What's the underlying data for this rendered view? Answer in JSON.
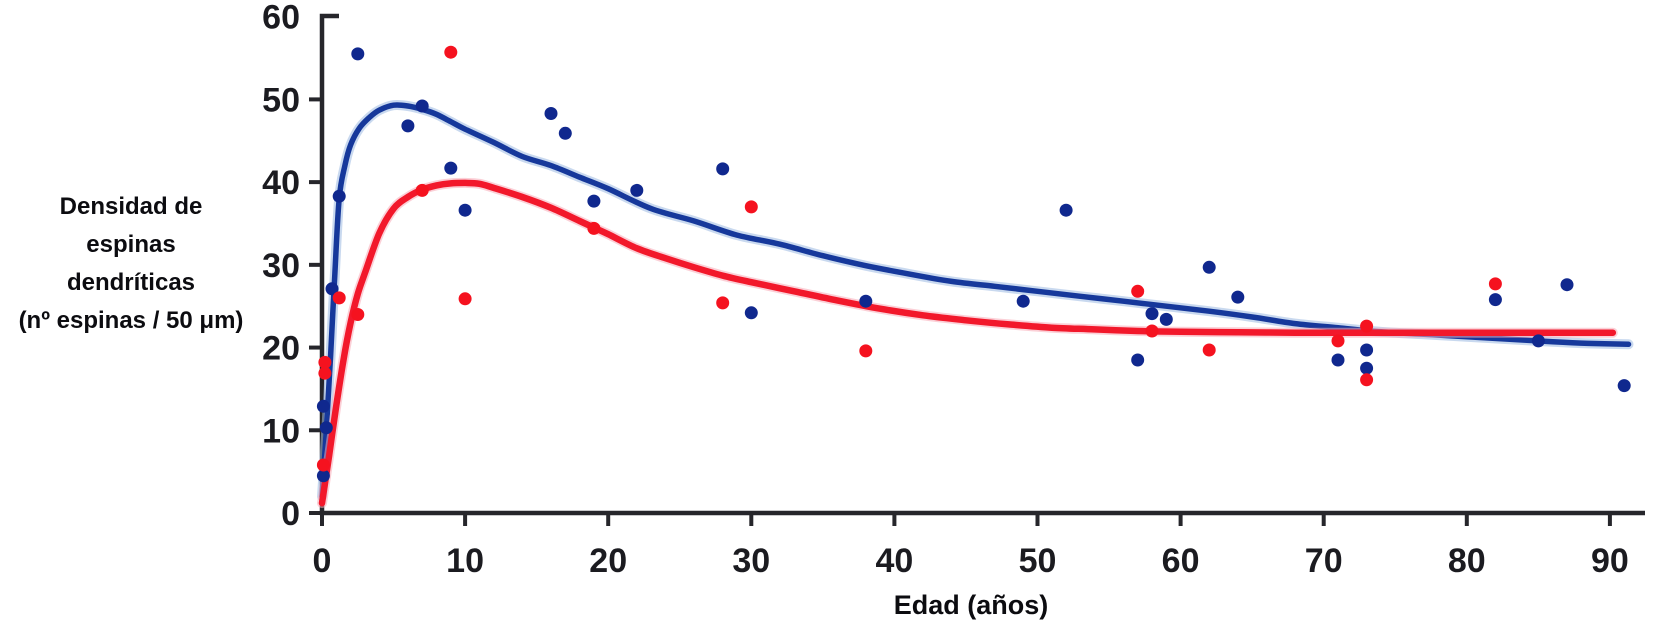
{
  "chart_data": {
    "type": "scatter",
    "title": "",
    "xlabel": "Edad (años)",
    "ylabel": "Densidad de espinas dendríticas (nº espinas / 50 μm)",
    "ylabel_lines": [
      "Densidad de",
      "espinas",
      "dendríticas",
      "(nº espinas / 50 μm)"
    ],
    "x_ticks": [
      0,
      10,
      20,
      30,
      40,
      50,
      60,
      70,
      80,
      90
    ],
    "y_ticks": [
      0,
      10,
      20,
      30,
      40,
      50,
      60
    ],
    "xlim": [
      0,
      92
    ],
    "ylim": [
      0,
      60
    ],
    "grid": false,
    "legend": "none",
    "colors": {
      "axis": "#26262b",
      "azul": "#10288e",
      "rojo": "#f5121f"
    },
    "series": [
      {
        "name": "azul",
        "marker_color": "#10288e",
        "curve_color": "#16389b",
        "halo_color": "#9db9e2",
        "points": [
          [
            0.1,
            4.5
          ],
          [
            0.1,
            12.9
          ],
          [
            0.3,
            10.3
          ],
          [
            0.7,
            27.1
          ],
          [
            1.2,
            38.3
          ],
          [
            2.5,
            55.5
          ],
          [
            6,
            46.8
          ],
          [
            7,
            49.2
          ],
          [
            9,
            41.7
          ],
          [
            10,
            36.6
          ],
          [
            16,
            48.3
          ],
          [
            17,
            45.9
          ],
          [
            19,
            37.7
          ],
          [
            22,
            39.0
          ],
          [
            28,
            41.6
          ],
          [
            30,
            24.2
          ],
          [
            38,
            25.6
          ],
          [
            49,
            25.6
          ],
          [
            52,
            36.6
          ],
          [
            57,
            18.5
          ],
          [
            58,
            24.1
          ],
          [
            59,
            23.4
          ],
          [
            62,
            29.7
          ],
          [
            64,
            26.1
          ],
          [
            71,
            18.5
          ],
          [
            73,
            19.7
          ],
          [
            73,
            17.5
          ],
          [
            82,
            25.8
          ],
          [
            85,
            20.8
          ],
          [
            87,
            27.6
          ],
          [
            91,
            15.4
          ]
        ],
        "fit_curve": [
          [
            0,
            2
          ],
          [
            0.3,
            10
          ],
          [
            0.6,
            19
          ],
          [
            0.9,
            29
          ],
          [
            1.2,
            38
          ],
          [
            1.6,
            42
          ],
          [
            2,
            44.5
          ],
          [
            2.6,
            46.5
          ],
          [
            3.3,
            47.8
          ],
          [
            4,
            48.7
          ],
          [
            5,
            49.3
          ],
          [
            6,
            49.2
          ],
          [
            7,
            48.8
          ],
          [
            8,
            48.2
          ],
          [
            9,
            47.3
          ],
          [
            10,
            46.4
          ],
          [
            12,
            44.8
          ],
          [
            14,
            43.1
          ],
          [
            16,
            42.0
          ],
          [
            18,
            40.6
          ],
          [
            20,
            39.2
          ],
          [
            23,
            36.8
          ],
          [
            26,
            35.3
          ],
          [
            29,
            33.6
          ],
          [
            32,
            32.5
          ],
          [
            35,
            31.1
          ],
          [
            38,
            29.9
          ],
          [
            41,
            28.9
          ],
          [
            44,
            28.0
          ],
          [
            47,
            27.4
          ],
          [
            50,
            26.8
          ],
          [
            53,
            26.2
          ],
          [
            56,
            25.6
          ],
          [
            59,
            25.0
          ],
          [
            62,
            24.4
          ],
          [
            65,
            23.7
          ],
          [
            68,
            22.9
          ],
          [
            71,
            22.4
          ],
          [
            74,
            21.9
          ],
          [
            77,
            21.6
          ],
          [
            80,
            21.3
          ],
          [
            83,
            21.0
          ],
          [
            86,
            20.7
          ],
          [
            88.5,
            20.5
          ],
          [
            91.3,
            20.4
          ]
        ]
      },
      {
        "name": "rojo",
        "marker_color": "#f5121f",
        "curve_color": "#f2182b",
        "halo_color": "#f8aab6",
        "points": [
          [
            0.1,
            5.8
          ],
          [
            0.2,
            16.9
          ],
          [
            0.2,
            18.2
          ],
          [
            1.2,
            26.0
          ],
          [
            2.5,
            24.0
          ],
          [
            7,
            39.0
          ],
          [
            9,
            55.7
          ],
          [
            10,
            25.9
          ],
          [
            19,
            34.4
          ],
          [
            28,
            25.4
          ],
          [
            30,
            37.0
          ],
          [
            38,
            19.6
          ],
          [
            57,
            26.8
          ],
          [
            58,
            22.0
          ],
          [
            62,
            19.7
          ],
          [
            71,
            20.8
          ],
          [
            73,
            22.6
          ],
          [
            73,
            16.1
          ],
          [
            82,
            27.7
          ]
        ],
        "fit_curve": [
          [
            0,
            1.2
          ],
          [
            0.5,
            7
          ],
          [
            1,
            13
          ],
          [
            1.5,
            18.5
          ],
          [
            2,
            23
          ],
          [
            2.5,
            26.5
          ],
          [
            3,
            29
          ],
          [
            4,
            33.8
          ],
          [
            5,
            36.8
          ],
          [
            6,
            38.2
          ],
          [
            7,
            39.1
          ],
          [
            8,
            39.6
          ],
          [
            9,
            39.85
          ],
          [
            10,
            39.9
          ],
          [
            11,
            39.8
          ],
          [
            12,
            39.3
          ],
          [
            14,
            38.2
          ],
          [
            16,
            36.9
          ],
          [
            18,
            35.3
          ],
          [
            19,
            34.5
          ],
          [
            20,
            33.7
          ],
          [
            22,
            32.0
          ],
          [
            24,
            30.8
          ],
          [
            26,
            29.7
          ],
          [
            28,
            28.7
          ],
          [
            30,
            27.9
          ],
          [
            33,
            26.8
          ],
          [
            36,
            25.7
          ],
          [
            39,
            24.7
          ],
          [
            42,
            23.9
          ],
          [
            45,
            23.3
          ],
          [
            48,
            22.8
          ],
          [
            51,
            22.4
          ],
          [
            54,
            22.2
          ],
          [
            57,
            22.0
          ],
          [
            60,
            21.9
          ],
          [
            64,
            21.85
          ],
          [
            68,
            21.8
          ],
          [
            72,
            21.8
          ],
          [
            76,
            21.8
          ],
          [
            80,
            21.8
          ],
          [
            84,
            21.8
          ],
          [
            87,
            21.8
          ],
          [
            90.2,
            21.8
          ]
        ]
      }
    ]
  }
}
